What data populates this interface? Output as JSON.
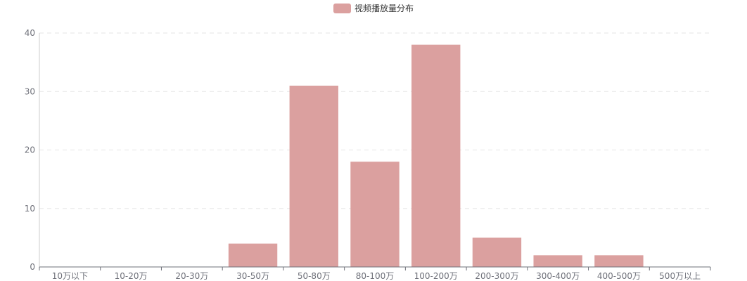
{
  "chart_data": {
    "type": "bar",
    "legend": {
      "label": "视频播放量分布",
      "position": "top-center"
    },
    "categories": [
      "10万以下",
      "10-20万",
      "20-30万",
      "30-50万",
      "50-80万",
      "80-100万",
      "100-200万",
      "200-300万",
      "300-400万",
      "400-500万",
      "500万以上"
    ],
    "series": [
      {
        "name": "视频播放量分布",
        "values": [
          0,
          0,
          0,
          4,
          31,
          18,
          38,
          5,
          2,
          2,
          0
        ]
      }
    ],
    "ylim": [
      0,
      40
    ],
    "yticks": [
      0,
      10,
      20,
      30,
      40
    ],
    "grid": true,
    "colors": {
      "bar": "#dba09f",
      "axis": "#6e7079",
      "grid": "#e6e6e6",
      "text": "#333333"
    }
  }
}
